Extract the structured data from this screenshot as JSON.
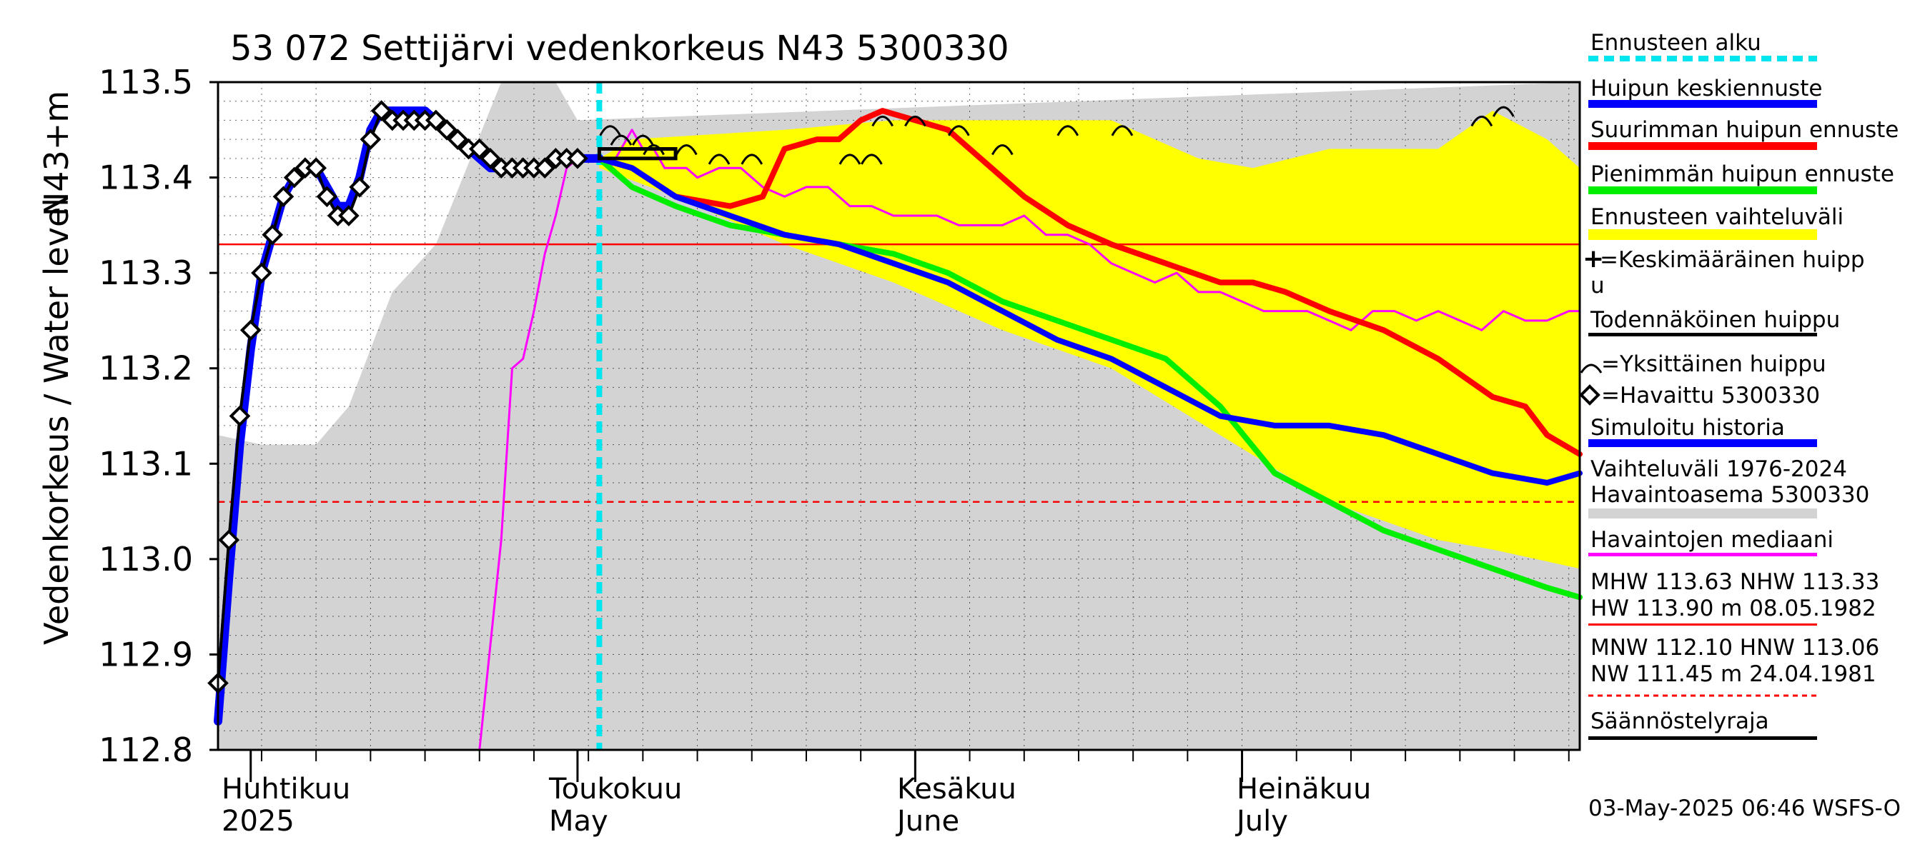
{
  "title": "53 072 Settijärvi vedenkorkeus N43 5300330",
  "y_axis": {
    "label": "Vedenkorkeus / Water level",
    "unit": "N43+m",
    "ticks": [
      "113.5",
      "113.4",
      "113.3",
      "113.2",
      "113.1",
      "113.0",
      "112.9",
      "112.8"
    ]
  },
  "months": [
    {
      "fi": "Huhtikuu",
      "en": "2025"
    },
    {
      "fi": "Toukokuu",
      "en": "May"
    },
    {
      "fi": "Kesäkuu",
      "en": "June"
    },
    {
      "fi": "Heinäkuu",
      "en": "July"
    }
  ],
  "legend": {
    "forecast_start": "Ennusteen alku",
    "mean_peak_forecast": "Huipun keskiennuste",
    "max_peak_forecast": "Suurimman huipun ennuste",
    "min_peak_forecast": "Pienimmän huipun ennuste",
    "forecast_range": "Ennusteen vaihteluväli",
    "mean_peak_1": "=Keskimääräinen huipp",
    "mean_peak_2": "u",
    "probable_peak": "Todennäköinen huippu",
    "single_peak": "=Yksittäinen huippu",
    "observed": "=Havaittu 5300330",
    "simulated": "Simuloitu historia",
    "range_hist_1": "Vaihteluväli 1976-2024",
    "range_hist_2": " Havaintoasema 5300330",
    "median": "Havaintojen mediaani",
    "stats_high_1": "MHW 113.63 NHW 113.33",
    "stats_high_2": "HW 113.90 m 08.05.1982",
    "stats_low_1": "MNW 112.10 HNW 113.06",
    "stats_low_2": "NW 111.45 m 24.04.1981",
    "regulation": "Säännöstelyraja"
  },
  "footer": "03-May-2025 06:46 WSFS-O",
  "colors": {
    "forecast_start": "#00e5ee",
    "mean": "#0000ff",
    "max": "#ff0000",
    "min": "#00ee00",
    "range": "#ffff00",
    "hist_range": "#d3d3d3",
    "median": "#ff00ff",
    "observed": "#000000"
  },
  "chart_data": {
    "type": "line",
    "x_unit": "day of year 2025",
    "ylim": [
      112.8,
      113.5
    ],
    "xlim": [
      88,
      213
    ],
    "reference_lines": [
      {
        "value": 113.33,
        "style": "solid",
        "color": "#ff0000",
        "label": "NHW"
      },
      {
        "value": 113.06,
        "style": "dashed",
        "color": "#ff0000",
        "label": "HNW"
      }
    ],
    "forecast_start_day": 123,
    "hist_range": {
      "upper": [
        [
          88,
          113.13
        ],
        [
          92,
          113.12
        ],
        [
          97,
          113.12
        ],
        [
          100,
          113.16
        ],
        [
          104,
          113.28
        ],
        [
          108,
          113.33
        ],
        [
          114,
          113.5
        ],
        [
          119,
          113.5
        ],
        [
          121,
          113.46
        ],
        [
          213,
          113.5
        ]
      ],
      "lower": [
        [
          88,
          112.8
        ],
        [
          213,
          112.8
        ]
      ]
    },
    "forecast_range": {
      "upper": [
        [
          123,
          113.42
        ],
        [
          126,
          113.44
        ],
        [
          140,
          113.45
        ],
        [
          150,
          113.46
        ],
        [
          160,
          113.46
        ],
        [
          170,
          113.46
        ],
        [
          178,
          113.42
        ],
        [
          183,
          113.41
        ],
        [
          190,
          113.43
        ],
        [
          200,
          113.43
        ],
        [
          205,
          113.47
        ],
        [
          210,
          113.44
        ],
        [
          213,
          113.41
        ]
      ],
      "lower": [
        [
          123,
          113.41
        ],
        [
          130,
          113.38
        ],
        [
          140,
          113.33
        ],
        [
          150,
          113.29
        ],
        [
          160,
          113.24
        ],
        [
          170,
          113.2
        ],
        [
          180,
          113.13
        ],
        [
          190,
          113.06
        ],
        [
          200,
          113.02
        ],
        [
          205,
          113.01
        ],
        [
          213,
          112.99
        ]
      ]
    },
    "series": [
      {
        "name": "Havaittu 5300330",
        "key": "observed",
        "points": [
          [
            88,
            112.87
          ],
          [
            89,
            113.02
          ],
          [
            90,
            113.15
          ],
          [
            91,
            113.24
          ],
          [
            92,
            113.3
          ],
          [
            93,
            113.34
          ],
          [
            94,
            113.38
          ],
          [
            95,
            113.4
          ],
          [
            96,
            113.41
          ],
          [
            97,
            113.41
          ],
          [
            98,
            113.38
          ],
          [
            99,
            113.36
          ],
          [
            100,
            113.36
          ],
          [
            101,
            113.39
          ],
          [
            102,
            113.44
          ],
          [
            103,
            113.47
          ],
          [
            104,
            113.46
          ],
          [
            105,
            113.46
          ],
          [
            106,
            113.46
          ],
          [
            107,
            113.46
          ],
          [
            108,
            113.46
          ],
          [
            109,
            113.45
          ],
          [
            110,
            113.44
          ],
          [
            111,
            113.43
          ],
          [
            112,
            113.43
          ],
          [
            113,
            113.42
          ],
          [
            114,
            113.41
          ],
          [
            115,
            113.41
          ],
          [
            116,
            113.41
          ],
          [
            117,
            113.41
          ],
          [
            118,
            113.41
          ],
          [
            119,
            113.42
          ],
          [
            120,
            113.42
          ],
          [
            121,
            113.42
          ]
        ]
      },
      {
        "name": "Simuloitu historia",
        "key": "simulated",
        "points": [
          [
            88,
            112.83
          ],
          [
            89,
            112.98
          ],
          [
            90,
            113.12
          ],
          [
            91,
            113.22
          ],
          [
            92,
            113.3
          ],
          [
            93,
            113.34
          ],
          [
            94,
            113.38
          ],
          [
            95,
            113.4
          ],
          [
            96,
            113.41
          ],
          [
            97,
            113.41
          ],
          [
            98,
            113.39
          ],
          [
            99,
            113.37
          ],
          [
            100,
            113.37
          ],
          [
            101,
            113.4
          ],
          [
            102,
            113.45
          ],
          [
            103,
            113.47
          ],
          [
            104,
            113.47
          ],
          [
            105,
            113.47
          ],
          [
            106,
            113.47
          ],
          [
            107,
            113.47
          ],
          [
            108,
            113.46
          ],
          [
            109,
            113.45
          ],
          [
            110,
            113.44
          ],
          [
            111,
            113.43
          ],
          [
            112,
            113.42
          ],
          [
            113,
            113.41
          ],
          [
            114,
            113.41
          ],
          [
            115,
            113.41
          ],
          [
            116,
            113.41
          ],
          [
            117,
            113.41
          ],
          [
            118,
            113.41
          ],
          [
            119,
            113.42
          ],
          [
            120,
            113.42
          ],
          [
            121,
            113.42
          ],
          [
            122,
            113.42
          ],
          [
            123,
            113.42
          ]
        ]
      },
      {
        "name": "Havaintojen mediaani",
        "key": "median",
        "points": [
          [
            112,
            112.8
          ],
          [
            114,
            113.02
          ],
          [
            115,
            113.2
          ],
          [
            116,
            113.21
          ],
          [
            117,
            113.26
          ],
          [
            118,
            113.32
          ],
          [
            119,
            113.36
          ],
          [
            120,
            113.41
          ],
          [
            121,
            113.42
          ],
          [
            123,
            113.42
          ],
          [
            124,
            113.41
          ],
          [
            125,
            113.43
          ],
          [
            126,
            113.45
          ],
          [
            127,
            113.43
          ],
          [
            128,
            113.43
          ],
          [
            129,
            113.41
          ],
          [
            130,
            113.41
          ],
          [
            131,
            113.41
          ],
          [
            132,
            113.4
          ],
          [
            134,
            113.41
          ],
          [
            136,
            113.41
          ],
          [
            138,
            113.39
          ],
          [
            140,
            113.38
          ],
          [
            142,
            113.39
          ],
          [
            144,
            113.39
          ],
          [
            146,
            113.37
          ],
          [
            148,
            113.37
          ],
          [
            150,
            113.36
          ],
          [
            152,
            113.36
          ],
          [
            154,
            113.36
          ],
          [
            156,
            113.35
          ],
          [
            158,
            113.35
          ],
          [
            160,
            113.35
          ],
          [
            162,
            113.36
          ],
          [
            164,
            113.34
          ],
          [
            166,
            113.34
          ],
          [
            168,
            113.33
          ],
          [
            170,
            113.31
          ],
          [
            172,
            113.3
          ],
          [
            174,
            113.29
          ],
          [
            176,
            113.3
          ],
          [
            178,
            113.28
          ],
          [
            180,
            113.28
          ],
          [
            182,
            113.27
          ],
          [
            184,
            113.26
          ],
          [
            186,
            113.26
          ],
          [
            188,
            113.26
          ],
          [
            190,
            113.25
          ],
          [
            192,
            113.24
          ],
          [
            194,
            113.26
          ],
          [
            196,
            113.26
          ],
          [
            198,
            113.25
          ],
          [
            200,
            113.26
          ],
          [
            202,
            113.25
          ],
          [
            204,
            113.24
          ],
          [
            206,
            113.26
          ],
          [
            208,
            113.25
          ],
          [
            210,
            113.25
          ],
          [
            212,
            113.26
          ],
          [
            213,
            113.26
          ]
        ]
      },
      {
        "name": "Suurimman huipun ennuste",
        "key": "max",
        "points": [
          [
            123,
            113.42
          ],
          [
            126,
            113.41
          ],
          [
            130,
            113.38
          ],
          [
            135,
            113.37
          ],
          [
            138,
            113.38
          ],
          [
            140,
            113.43
          ],
          [
            143,
            113.44
          ],
          [
            145,
            113.44
          ],
          [
            147,
            113.46
          ],
          [
            149,
            113.47
          ],
          [
            152,
            113.46
          ],
          [
            155,
            113.45
          ],
          [
            158,
            113.42
          ],
          [
            162,
            113.38
          ],
          [
            166,
            113.35
          ],
          [
            170,
            113.33
          ],
          [
            175,
            113.31
          ],
          [
            180,
            113.29
          ],
          [
            183,
            113.29
          ],
          [
            186,
            113.28
          ],
          [
            190,
            113.26
          ],
          [
            195,
            113.24
          ],
          [
            200,
            113.21
          ],
          [
            205,
            113.17
          ],
          [
            208,
            113.16
          ],
          [
            210,
            113.13
          ],
          [
            213,
            113.11
          ]
        ]
      },
      {
        "name": "Pienimmän huipun ennuste",
        "key": "min",
        "points": [
          [
            123,
            113.42
          ],
          [
            126,
            113.39
          ],
          [
            130,
            113.37
          ],
          [
            135,
            113.35
          ],
          [
            140,
            113.34
          ],
          [
            145,
            113.33
          ],
          [
            150,
            113.32
          ],
          [
            155,
            113.3
          ],
          [
            160,
            113.27
          ],
          [
            165,
            113.25
          ],
          [
            170,
            113.23
          ],
          [
            175,
            113.21
          ],
          [
            180,
            113.16
          ],
          [
            185,
            113.09
          ],
          [
            190,
            113.06
          ],
          [
            195,
            113.03
          ],
          [
            200,
            113.01
          ],
          [
            205,
            112.99
          ],
          [
            210,
            112.97
          ],
          [
            213,
            112.96
          ]
        ]
      },
      {
        "name": "Huipun keskiennuste",
        "key": "mean",
        "points": [
          [
            123,
            113.42
          ],
          [
            126,
            113.41
          ],
          [
            130,
            113.38
          ],
          [
            135,
            113.36
          ],
          [
            140,
            113.34
          ],
          [
            145,
            113.33
          ],
          [
            150,
            113.31
          ],
          [
            155,
            113.29
          ],
          [
            160,
            113.26
          ],
          [
            165,
            113.23
          ],
          [
            170,
            113.21
          ],
          [
            175,
            113.18
          ],
          [
            180,
            113.15
          ],
          [
            185,
            113.14
          ],
          [
            190,
            113.14
          ],
          [
            195,
            113.13
          ],
          [
            200,
            113.11
          ],
          [
            205,
            113.09
          ],
          [
            210,
            113.08
          ],
          [
            213,
            113.09
          ]
        ]
      }
    ],
    "single_peaks": [
      [
        124,
        113.45
      ],
      [
        125,
        113.44
      ],
      [
        127,
        113.44
      ],
      [
        128,
        113.43
      ],
      [
        131,
        113.43
      ],
      [
        134,
        113.42
      ],
      [
        137,
        113.42
      ],
      [
        146,
        113.42
      ],
      [
        148,
        113.42
      ],
      [
        149,
        113.46
      ],
      [
        152,
        113.46
      ],
      [
        156,
        113.45
      ],
      [
        160,
        113.43
      ],
      [
        166,
        113.45
      ],
      [
        171,
        113.45
      ],
      [
        204,
        113.46
      ],
      [
        206,
        113.47
      ]
    ],
    "probable_peak": {
      "x": [
        123,
        130
      ],
      "y": [
        113.42,
        113.43
      ]
    }
  }
}
